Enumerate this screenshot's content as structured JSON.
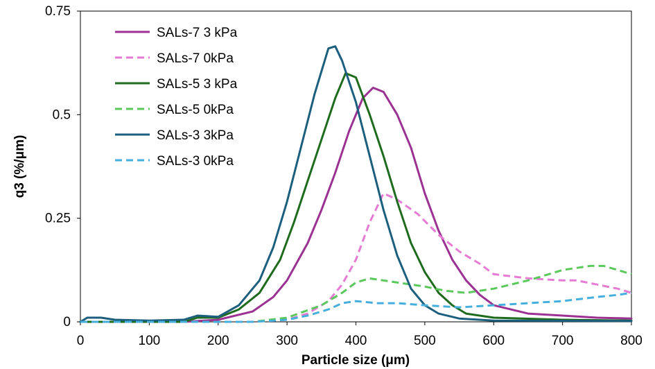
{
  "chart_data": {
    "type": "line",
    "title": "",
    "xlabel": "Particle size (μm)",
    "ylabel": "q3 (%/μm)",
    "xlim": [
      0,
      800
    ],
    "ylim": [
      0,
      0.75
    ],
    "x_ticks": [
      "0",
      "100",
      "200",
      "300",
      "400",
      "500",
      "600",
      "700",
      "800"
    ],
    "y_ticks": [
      "0",
      "0.25",
      "0.5",
      "0.75"
    ],
    "grid": false,
    "legend_position": "top-left",
    "series": [
      {
        "name": "SALs-7 3 kPa",
        "color": "#9B3192",
        "dash": "solid",
        "points": [
          [
            0,
            0
          ],
          [
            100,
            0
          ],
          [
            150,
            0
          ],
          [
            200,
            0.005
          ],
          [
            250,
            0.025
          ],
          [
            280,
            0.06
          ],
          [
            300,
            0.1
          ],
          [
            330,
            0.19
          ],
          [
            350,
            0.27
          ],
          [
            370,
            0.36
          ],
          [
            390,
            0.46
          ],
          [
            410,
            0.54
          ],
          [
            425,
            0.565
          ],
          [
            440,
            0.555
          ],
          [
            460,
            0.5
          ],
          [
            480,
            0.42
          ],
          [
            500,
            0.31
          ],
          [
            520,
            0.22
          ],
          [
            540,
            0.15
          ],
          [
            560,
            0.1
          ],
          [
            580,
            0.065
          ],
          [
            600,
            0.04
          ],
          [
            650,
            0.02
          ],
          [
            700,
            0.015
          ],
          [
            750,
            0.01
          ],
          [
            800,
            0.008
          ]
        ]
      },
      {
        "name": "SALs-7 0kPa",
        "color": "#E57BD2",
        "dash": "dashed",
        "points": [
          [
            0,
            0
          ],
          [
            200,
            0
          ],
          [
            250,
            0
          ],
          [
            300,
            0.005
          ],
          [
            330,
            0.02
          ],
          [
            360,
            0.05
          ],
          [
            380,
            0.09
          ],
          [
            400,
            0.15
          ],
          [
            420,
            0.24
          ],
          [
            440,
            0.31
          ],
          [
            460,
            0.295
          ],
          [
            490,
            0.26
          ],
          [
            520,
            0.21
          ],
          [
            550,
            0.17
          ],
          [
            580,
            0.14
          ],
          [
            600,
            0.115
          ],
          [
            650,
            0.105
          ],
          [
            700,
            0.1
          ],
          [
            720,
            0.1
          ],
          [
            750,
            0.09
          ],
          [
            780,
            0.08
          ],
          [
            800,
            0.07
          ]
        ]
      },
      {
        "name": "SALs-5 3 kPa",
        "color": "#1E6B1E",
        "dash": "solid",
        "points": [
          [
            0,
            0
          ],
          [
            100,
            0
          ],
          [
            150,
            0
          ],
          [
            170,
            0.01
          ],
          [
            200,
            0.01
          ],
          [
            230,
            0.03
          ],
          [
            260,
            0.07
          ],
          [
            290,
            0.15
          ],
          [
            310,
            0.24
          ],
          [
            330,
            0.34
          ],
          [
            350,
            0.44
          ],
          [
            370,
            0.54
          ],
          [
            385,
            0.6
          ],
          [
            400,
            0.59
          ],
          [
            420,
            0.5
          ],
          [
            440,
            0.4
          ],
          [
            460,
            0.29
          ],
          [
            480,
            0.19
          ],
          [
            500,
            0.12
          ],
          [
            520,
            0.07
          ],
          [
            540,
            0.04
          ],
          [
            560,
            0.02
          ],
          [
            600,
            0.01
          ],
          [
            700,
            0.005
          ],
          [
            800,
            0.003
          ]
        ]
      },
      {
        "name": "SALs-5 0kPa",
        "color": "#5BC85B",
        "dash": "dashed",
        "points": [
          [
            0,
            0
          ],
          [
            250,
            0
          ],
          [
            300,
            0.01
          ],
          [
            350,
            0.04
          ],
          [
            380,
            0.07
          ],
          [
            400,
            0.095
          ],
          [
            420,
            0.105
          ],
          [
            440,
            0.1
          ],
          [
            460,
            0.095
          ],
          [
            480,
            0.09
          ],
          [
            500,
            0.085
          ],
          [
            530,
            0.075
          ],
          [
            560,
            0.07
          ],
          [
            600,
            0.08
          ],
          [
            650,
            0.1
          ],
          [
            700,
            0.125
          ],
          [
            740,
            0.135
          ],
          [
            760,
            0.135
          ],
          [
            780,
            0.125
          ],
          [
            800,
            0.115
          ]
        ]
      },
      {
        "name": "SALs-3 3kPa",
        "color": "#1B5E7E",
        "dash": "solid",
        "points": [
          [
            0,
            0
          ],
          [
            10,
            0.01
          ],
          [
            30,
            0.01
          ],
          [
            50,
            0.005
          ],
          [
            100,
            0.003
          ],
          [
            150,
            0.005
          ],
          [
            170,
            0.015
          ],
          [
            200,
            0.012
          ],
          [
            230,
            0.04
          ],
          [
            260,
            0.1
          ],
          [
            280,
            0.18
          ],
          [
            300,
            0.29
          ],
          [
            320,
            0.42
          ],
          [
            340,
            0.55
          ],
          [
            360,
            0.66
          ],
          [
            370,
            0.665
          ],
          [
            380,
            0.63
          ],
          [
            400,
            0.53
          ],
          [
            420,
            0.4
          ],
          [
            440,
            0.27
          ],
          [
            460,
            0.16
          ],
          [
            480,
            0.08
          ],
          [
            500,
            0.04
          ],
          [
            520,
            0.02
          ],
          [
            550,
            0.008
          ],
          [
            600,
            0.003
          ],
          [
            800,
            0.002
          ]
        ]
      },
      {
        "name": "SALs-3 0kPa",
        "color": "#45AEDC",
        "dash": "dashed",
        "points": [
          [
            0,
            0
          ],
          [
            250,
            0
          ],
          [
            300,
            0.005
          ],
          [
            330,
            0.015
          ],
          [
            360,
            0.03
          ],
          [
            380,
            0.045
          ],
          [
            400,
            0.05
          ],
          [
            430,
            0.045
          ],
          [
            460,
            0.045
          ],
          [
            500,
            0.04
          ],
          [
            550,
            0.035
          ],
          [
            600,
            0.04
          ],
          [
            650,
            0.045
          ],
          [
            700,
            0.05
          ],
          [
            750,
            0.06
          ],
          [
            780,
            0.065
          ],
          [
            800,
            0.07
          ]
        ]
      }
    ]
  }
}
